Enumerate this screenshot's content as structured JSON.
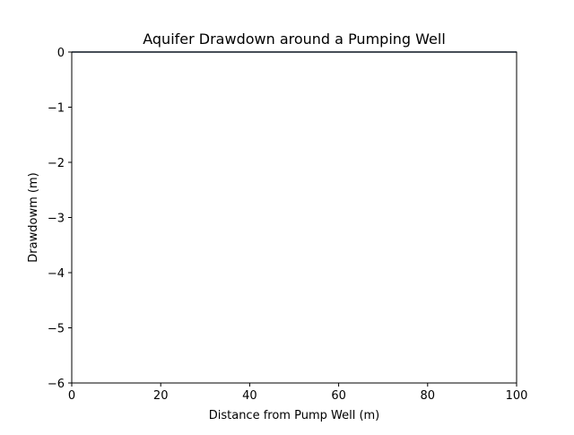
{
  "chart_data": {
    "type": "line",
    "title": "Aquifer Drawdown around a Pumping Well",
    "xlabel": "Distance from Pump Well (m)",
    "ylabel": "Drawdowm (m)",
    "xlim": [
      0,
      100
    ],
    "ylim": [
      -6,
      0
    ],
    "xticks": [
      0,
      20,
      40,
      60,
      80,
      100
    ],
    "yticks": [
      0,
      -1,
      -2,
      -3,
      -4,
      -5,
      -6
    ],
    "ytick_labels": [
      "0",
      "−1",
      "−2",
      "−3",
      "−4",
      "−5",
      "−6"
    ],
    "grid": false,
    "series": [
      {
        "x": [
          0,
          100
        ],
        "y": [
          0,
          0
        ],
        "color": "#1f3a5f"
      }
    ]
  }
}
